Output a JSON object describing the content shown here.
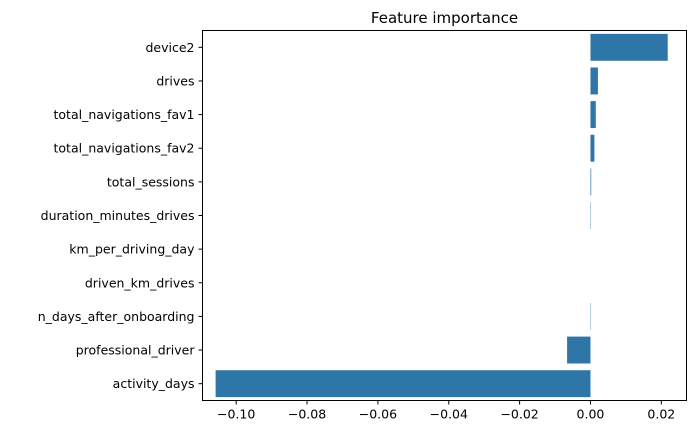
{
  "chart_data": {
    "type": "bar",
    "orientation": "horizontal",
    "title": "Feature importance",
    "xlabel": "",
    "ylabel": "",
    "categories": [
      "device2",
      "drives",
      "total_navigations_fav1",
      "total_navigations_fav2",
      "total_sessions",
      "duration_minutes_drives",
      "km_per_driving_day",
      "driven_km_drives",
      "n_days_after_onboarding",
      "professional_driver",
      "activity_days"
    ],
    "values": [
      0.0218,
      0.0021,
      0.0015,
      0.0011,
      0.0002,
      0.0001,
      0.0,
      0.0,
      -0.0001,
      -0.0066,
      -0.1058
    ],
    "xlim": [
      -0.1095,
      0.0271
    ],
    "xticks": [
      -0.1,
      -0.08,
      -0.06,
      -0.04,
      -0.02,
      0.0,
      0.02
    ],
    "xtick_labels": [
      "−0.10",
      "−0.08",
      "−0.06",
      "−0.04",
      "−0.02",
      "0.00",
      "0.02"
    ],
    "grid": false,
    "legend": false,
    "bar_color": "#2e75a8"
  }
}
